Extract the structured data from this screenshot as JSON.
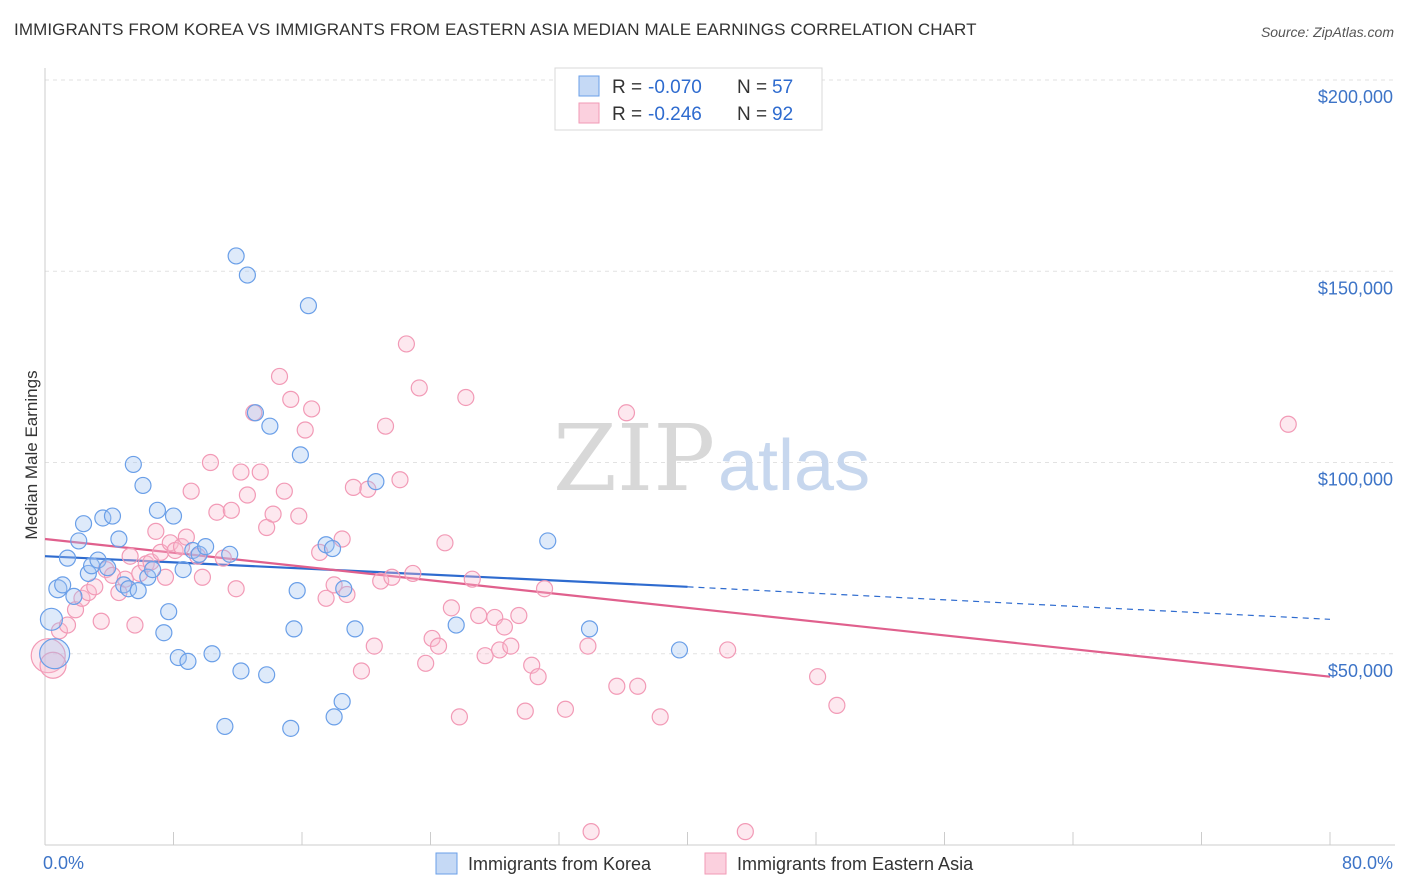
{
  "title": "IMMIGRANTS FROM KOREA VS IMMIGRANTS FROM EASTERN ASIA MEDIAN MALE EARNINGS CORRELATION CHART",
  "source": "Source: ZipAtlas.com",
  "watermark": {
    "zip": "ZIP",
    "atlas": "atlas"
  },
  "colors": {
    "korea": "#6a9fe8",
    "korea_line": "#2e6bcf",
    "eastern_asia": "#f29ab6",
    "eastern_asia_line": "#e0608d",
    "axis_text": "#3d74c7"
  },
  "legend": {
    "rows": [
      {
        "r_label": "R =",
        "r_value": "-0.070",
        "n_label": "N =",
        "n_value": "57"
      },
      {
        "r_label": "R =",
        "r_value": "-0.246",
        "n_label": "N =",
        "n_value": "92"
      }
    ]
  },
  "bottom_legend": [
    "Immigrants from Korea",
    "Immigrants from Eastern Asia"
  ],
  "chart_data": {
    "type": "scatter",
    "ylabel": "Median Male Earnings",
    "x_tick_labels": [
      "0.0%",
      "80.0%"
    ],
    "y_tick_labels": [
      "$50,000",
      "$100,000",
      "$150,000",
      "$200,000"
    ],
    "y_ticks": [
      50000,
      100000,
      150000,
      200000
    ],
    "xlim": [
      0,
      80
    ],
    "ylim": [
      0,
      205000
    ],
    "grid": true,
    "series": [
      {
        "name": "Immigrants from Korea",
        "trend": {
          "x0": 0,
          "y0": 75500,
          "x1": 40,
          "y1": 67500,
          "dash_to_x": 80,
          "dash_to_y": 59000
        },
        "points": [
          [
            0.4,
            59000,
            10
          ],
          [
            0.6,
            50000,
            14
          ],
          [
            0.8,
            67000,
            8
          ],
          [
            1.1,
            68000,
            7
          ],
          [
            1.4,
            75000,
            7
          ],
          [
            1.8,
            65000,
            7
          ],
          [
            2.1,
            79500,
            7
          ],
          [
            2.4,
            84000,
            7
          ],
          [
            2.7,
            71000,
            7
          ],
          [
            2.9,
            73000,
            7
          ],
          [
            3.3,
            74500,
            7
          ],
          [
            3.6,
            85500,
            7
          ],
          [
            3.9,
            72500,
            7
          ],
          [
            4.2,
            86000,
            7
          ],
          [
            4.6,
            80000,
            7
          ],
          [
            4.9,
            68000,
            7
          ],
          [
            5.2,
            67000,
            7
          ],
          [
            5.5,
            99500,
            7
          ],
          [
            5.8,
            66500,
            7
          ],
          [
            6.1,
            94000,
            7
          ],
          [
            6.4,
            70000,
            7
          ],
          [
            6.7,
            72000,
            7
          ],
          [
            7.0,
            87500,
            7
          ],
          [
            7.4,
            55500,
            7
          ],
          [
            7.7,
            61000,
            7
          ],
          [
            8.0,
            86000,
            7
          ],
          [
            8.3,
            49000,
            7
          ],
          [
            8.6,
            72000,
            7
          ],
          [
            8.9,
            48000,
            7
          ],
          [
            9.2,
            77000,
            7
          ],
          [
            9.6,
            76000,
            7
          ],
          [
            10.0,
            78000,
            7
          ],
          [
            10.4,
            50000,
            7
          ],
          [
            11.2,
            31000,
            7
          ],
          [
            11.5,
            76000,
            7
          ],
          [
            11.9,
            154000,
            7
          ],
          [
            12.2,
            45500,
            7
          ],
          [
            12.6,
            149000,
            7
          ],
          [
            13.1,
            113000,
            7
          ],
          [
            13.8,
            44500,
            7
          ],
          [
            14.0,
            109500,
            7
          ],
          [
            15.3,
            30500,
            7
          ],
          [
            15.5,
            56500,
            7
          ],
          [
            15.7,
            66500,
            7
          ],
          [
            15.9,
            102000,
            7
          ],
          [
            16.4,
            141000,
            7
          ],
          [
            17.5,
            78500,
            7
          ],
          [
            17.9,
            77500,
            7
          ],
          [
            18.0,
            33500,
            7
          ],
          [
            18.5,
            37500,
            7
          ],
          [
            18.6,
            67000,
            7
          ],
          [
            19.3,
            56500,
            7
          ],
          [
            20.6,
            95000,
            7
          ],
          [
            25.6,
            57500,
            7
          ],
          [
            31.3,
            79500,
            7
          ],
          [
            33.9,
            56500,
            7
          ],
          [
            39.5,
            51000,
            7
          ]
        ]
      },
      {
        "name": "Immigrants from Eastern Asia",
        "trend": {
          "x0": 0,
          "y0": 80000,
          "x1": 80,
          "y1": 44000
        },
        "points": [
          [
            0.2,
            49500,
            16
          ],
          [
            0.5,
            47000,
            12
          ],
          [
            0.9,
            56000,
            7
          ],
          [
            1.4,
            57500,
            7
          ],
          [
            1.9,
            61500,
            7
          ],
          [
            2.3,
            64500,
            7
          ],
          [
            2.7,
            66000,
            7
          ],
          [
            3.1,
            67500,
            7
          ],
          [
            3.5,
            58500,
            7
          ],
          [
            3.8,
            72000,
            7
          ],
          [
            4.2,
            70500,
            7
          ],
          [
            4.6,
            66000,
            7
          ],
          [
            5.0,
            69500,
            7
          ],
          [
            5.3,
            75500,
            7
          ],
          [
            5.6,
            57500,
            7
          ],
          [
            5.9,
            71000,
            7
          ],
          [
            6.3,
            73500,
            7
          ],
          [
            6.6,
            74000,
            7
          ],
          [
            6.9,
            82000,
            7
          ],
          [
            7.2,
            76500,
            7
          ],
          [
            7.5,
            70000,
            7
          ],
          [
            7.8,
            79000,
            7
          ],
          [
            8.1,
            77000,
            7
          ],
          [
            8.5,
            78000,
            7
          ],
          [
            8.8,
            80500,
            7
          ],
          [
            9.1,
            92500,
            7
          ],
          [
            9.5,
            75500,
            7
          ],
          [
            9.8,
            70000,
            7
          ],
          [
            10.3,
            100000,
            7
          ],
          [
            10.7,
            87000,
            7
          ],
          [
            11.1,
            75000,
            7
          ],
          [
            11.6,
            87500,
            7
          ],
          [
            11.9,
            67000,
            7
          ],
          [
            12.2,
            97500,
            7
          ],
          [
            12.6,
            91500,
            7
          ],
          [
            13.0,
            113000,
            7
          ],
          [
            13.4,
            97500,
            7
          ],
          [
            13.8,
            83000,
            7
          ],
          [
            14.2,
            86500,
            7
          ],
          [
            14.6,
            122500,
            7
          ],
          [
            14.9,
            92500,
            7
          ],
          [
            15.3,
            116500,
            7
          ],
          [
            15.8,
            86000,
            7
          ],
          [
            16.2,
            108500,
            7
          ],
          [
            16.6,
            114000,
            7
          ],
          [
            17.1,
            76500,
            7
          ],
          [
            17.5,
            64500,
            7
          ],
          [
            18.0,
            68000,
            7
          ],
          [
            18.5,
            80000,
            7
          ],
          [
            18.8,
            65500,
            7
          ],
          [
            19.2,
            93500,
            7
          ],
          [
            19.7,
            45500,
            7
          ],
          [
            20.1,
            93000,
            7
          ],
          [
            20.5,
            52000,
            7
          ],
          [
            20.9,
            69000,
            7
          ],
          [
            21.2,
            109500,
            7
          ],
          [
            21.6,
            70000,
            7
          ],
          [
            22.1,
            95500,
            7
          ],
          [
            22.5,
            131000,
            7
          ],
          [
            22.9,
            71000,
            7
          ],
          [
            23.3,
            119500,
            7
          ],
          [
            23.7,
            47500,
            7
          ],
          [
            24.1,
            54000,
            7
          ],
          [
            24.5,
            52000,
            7
          ],
          [
            24.9,
            79000,
            7
          ],
          [
            25.3,
            62000,
            7
          ],
          [
            25.8,
            33500,
            7
          ],
          [
            26.2,
            117000,
            7
          ],
          [
            26.6,
            69500,
            7
          ],
          [
            27.0,
            60000,
            7
          ],
          [
            27.4,
            49500,
            7
          ],
          [
            28.0,
            59500,
            7
          ],
          [
            28.3,
            51000,
            7
          ],
          [
            28.6,
            57000,
            7
          ],
          [
            29.0,
            52000,
            7
          ],
          [
            29.5,
            60000,
            7
          ],
          [
            29.9,
            35000,
            7
          ],
          [
            30.3,
            47000,
            7
          ],
          [
            30.7,
            44000,
            7
          ],
          [
            31.1,
            67000,
            7
          ],
          [
            32.4,
            35500,
            7
          ],
          [
            33.8,
            52000,
            7
          ],
          [
            34.0,
            3500,
            7
          ],
          [
            35.6,
            41500,
            7
          ],
          [
            36.2,
            113000,
            7
          ],
          [
            36.9,
            41500,
            7
          ],
          [
            38.3,
            33500,
            7
          ],
          [
            42.5,
            51000,
            7
          ],
          [
            43.6,
            3500,
            7
          ],
          [
            48.1,
            44000,
            7
          ],
          [
            49.3,
            36500,
            7
          ],
          [
            77.4,
            110000,
            7
          ]
        ]
      }
    ]
  }
}
